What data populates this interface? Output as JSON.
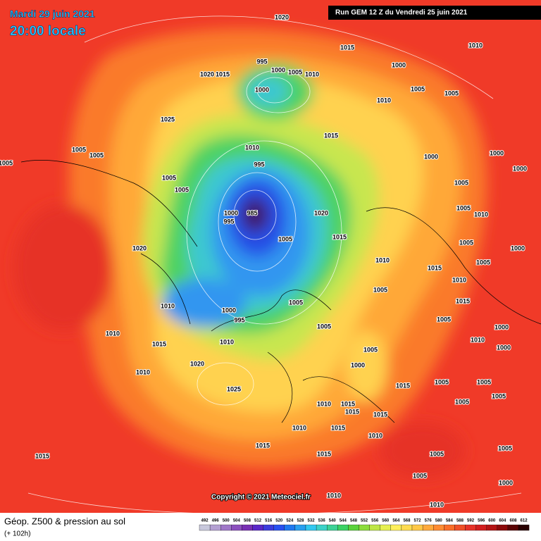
{
  "header": {
    "date": "Mardi 29 juin 2021",
    "time": "20:00 locale",
    "run": "Run GEM 12 Z du Vendredi 25 juin 2021"
  },
  "copyright": "Copyright © 2021 Meteociel.fr",
  "legend": {
    "title": "Géop. Z500 & pression au sol",
    "lead": "(+ 102h)",
    "scale": [
      492,
      496,
      500,
      504,
      508,
      512,
      516,
      520,
      524,
      528,
      532,
      536,
      540,
      544,
      548,
      552,
      556,
      560,
      564,
      568,
      572,
      576,
      580,
      584,
      588,
      592,
      596,
      600,
      604,
      608,
      612
    ],
    "colors": [
      "#c8c8dc",
      "#b4a0d2",
      "#a078c8",
      "#8c50be",
      "#7830b4",
      "#5a28c8",
      "#3c3cdc",
      "#2850f0",
      "#1e78f0",
      "#28a0f0",
      "#32c8f0",
      "#3cd2c8",
      "#3cd296",
      "#3cd264",
      "#5ad23c",
      "#8cdc3c",
      "#bee646",
      "#e6f050",
      "#fff05a",
      "#ffdc50",
      "#ffc846",
      "#ffaa3c",
      "#ff8c32",
      "#fa6e28",
      "#f05028",
      "#e63228",
      "#d21e1e",
      "#b41414",
      "#8c0a0a",
      "#5a0505",
      "#280000"
    ]
  },
  "isobars": [
    "1020",
    "1015",
    "1010",
    "1000",
    "995",
    "1000",
    "1005",
    "1010",
    "1020",
    "1015",
    "1000",
    "1005",
    "1005",
    "1010",
    "1025",
    "1015",
    "1010",
    "1005",
    "1005",
    "1000",
    "1000",
    "995",
    "1005",
    "1000",
    "1005",
    "1005",
    "1005",
    "1005",
    "1020",
    "1000",
    "985",
    "995",
    "1010",
    "1015",
    "1005",
    "1005",
    "1000",
    "1020",
    "1010",
    "1005",
    "1015",
    "1010",
    "1005",
    "1010",
    "1005",
    "1015",
    "1000",
    "995",
    "1005",
    "1005",
    "1000",
    "1010",
    "1010",
    "1015",
    "1010",
    "1000",
    "1005",
    "1000",
    "1020",
    "1010",
    "1025",
    "1015",
    "1005",
    "1005",
    "1010",
    "1015",
    "1005",
    "1005",
    "1015",
    "1015",
    "1010",
    "1015",
    "1010",
    "1015",
    "1015",
    "1005",
    "1005",
    "1015",
    "1005",
    "1000",
    "1010",
    "1010"
  ]
}
